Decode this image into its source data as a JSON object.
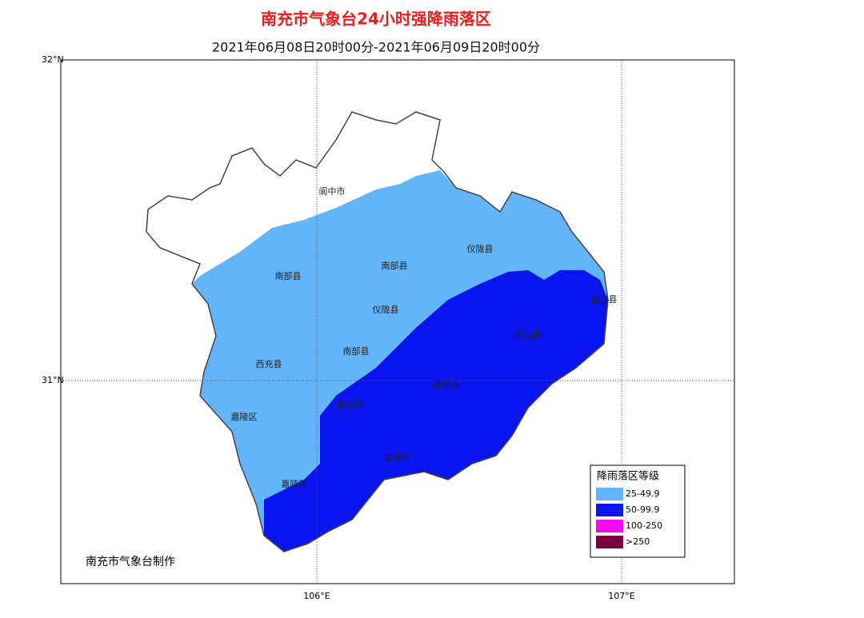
{
  "header": {
    "title": "南充市气象台24小时强降雨落区",
    "subtitle": "2021年06月08日20时00分-2021年06月09日20时00分"
  },
  "axes": {
    "lat": [
      "32°N",
      "31°N"
    ],
    "lon": [
      "106°E",
      "107°E"
    ]
  },
  "districts": [
    "阆中市",
    "仪陇县",
    "南部县",
    "南部县",
    "仪陇县",
    "营山县",
    "营山县",
    "南部县",
    "西充县",
    "蓬安县",
    "顺庆区",
    "嘉陵区",
    "高坪区",
    "嘉陵区"
  ],
  "legend": {
    "title": "降雨落区等级",
    "items": [
      {
        "label": "25-49.9",
        "color": "#62b5f9"
      },
      {
        "label": "50-99.9",
        "color": "#0a14ee"
      },
      {
        "label": "100-250",
        "color": "#f70cf2"
      },
      {
        "label": ">250",
        "color": "#7a0040"
      }
    ]
  },
  "credit": "南充市气象台制作"
}
